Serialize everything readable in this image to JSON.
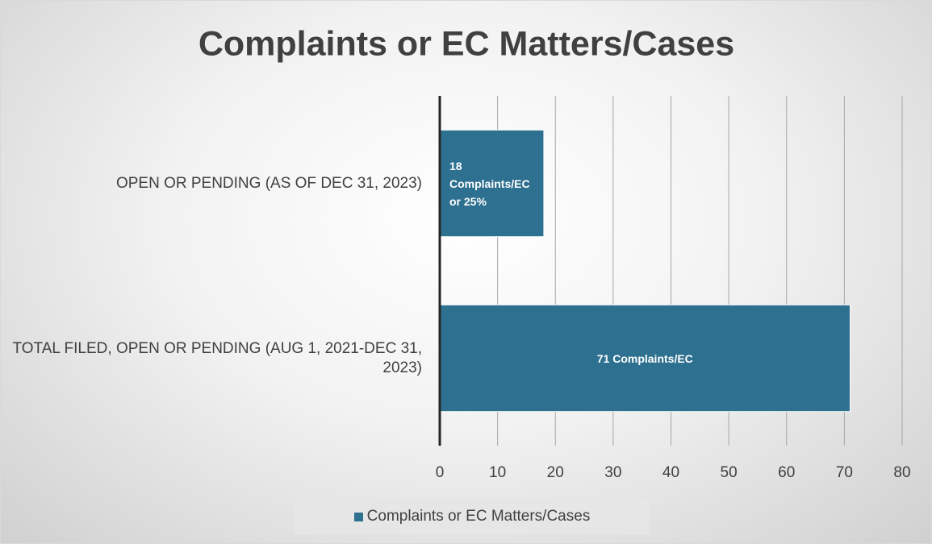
{
  "chart_data": {
    "type": "bar",
    "title": "Complaints or EC Matters/Cases",
    "categories": [
      "OPEN OR PENDING (AS OF DEC 31, 2023)",
      "TOTAL FILED, OPEN OR PENDING (AUG 1, 2021-DEC 31, 2023)"
    ],
    "series": [
      {
        "name": "Complaints or EC Matters/Cases",
        "color": "#2e7090",
        "values": [
          18,
          71
        ],
        "value_labels": [
          "18 Complaints/EC or 25%",
          "71 Complaints/EC"
        ]
      }
    ],
    "xlim": [
      0,
      80
    ],
    "xticks": [
      0,
      10,
      20,
      30,
      40,
      50,
      60,
      70,
      80
    ],
    "grid": true,
    "legend": "bottom"
  }
}
